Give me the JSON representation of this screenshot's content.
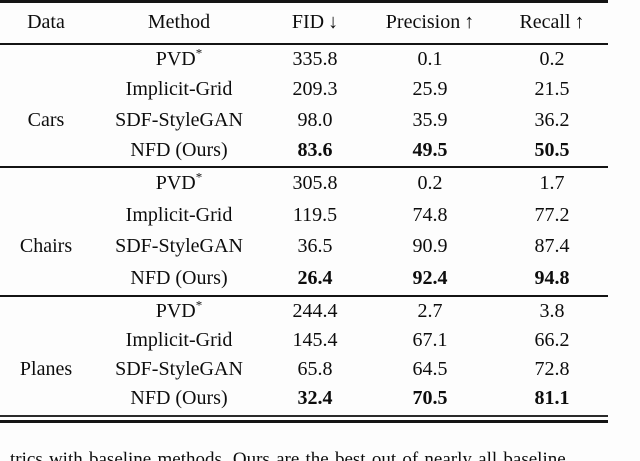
{
  "table": {
    "headers": {
      "data": {
        "label": "Data",
        "arrow": ""
      },
      "method": {
        "label": "Method",
        "arrow": ""
      },
      "fid": {
        "label": "FID",
        "arrow": "↓"
      },
      "precision": {
        "label": "Precision",
        "arrow": "↑"
      },
      "recall": {
        "label": "Recall",
        "arrow": "↑"
      }
    },
    "groups": [
      {
        "data_label": "Cars",
        "rows": [
          {
            "method": "PVD",
            "method_sup": "*",
            "fid": "335.8",
            "precision": "0.1",
            "recall": "0.2"
          },
          {
            "method": "Implicit-Grid",
            "fid": "209.3",
            "precision": "25.9",
            "recall": "21.5"
          },
          {
            "method": "SDF-StyleGAN",
            "fid": "98.0",
            "precision": "35.9",
            "recall": "36.2"
          },
          {
            "method": "NFD (Ours)",
            "fid": "83.6",
            "precision": "49.5",
            "recall": "50.5"
          }
        ]
      },
      {
        "data_label": "Chairs",
        "rows": [
          {
            "method": "PVD",
            "method_sup": "*",
            "fid": "305.8",
            "precision": "0.2",
            "recall": "1.7"
          },
          {
            "method": "Implicit-Grid",
            "fid": "119.5",
            "precision": "74.8",
            "recall": "77.2"
          },
          {
            "method": "SDF-StyleGAN",
            "fid": "36.5",
            "precision": "90.9",
            "recall": "87.4"
          },
          {
            "method": "NFD (Ours)",
            "fid": "26.4",
            "precision": "92.4",
            "recall": "94.8"
          }
        ]
      },
      {
        "data_label": "Planes",
        "rows": [
          {
            "method": "PVD",
            "method_sup": "*",
            "fid": "244.4",
            "precision": "2.7",
            "recall": "3.8"
          },
          {
            "method": "Implicit-Grid",
            "fid": "145.4",
            "precision": "67.1",
            "recall": "66.2"
          },
          {
            "method": "SDF-StyleGAN",
            "fid": "65.8",
            "precision": "64.5",
            "recall": "72.8"
          },
          {
            "method": "NFD (Ours)",
            "fid": "32.4",
            "precision": "70.5",
            "recall": "81.1"
          }
        ]
      }
    ]
  },
  "caption": {
    "fragment": "trics with baseline methods. Ours are the best out of nearly all baseline"
  },
  "colors": {
    "rule": "#141414",
    "text": "#0d0d0d",
    "background": "#fdfdfd"
  }
}
